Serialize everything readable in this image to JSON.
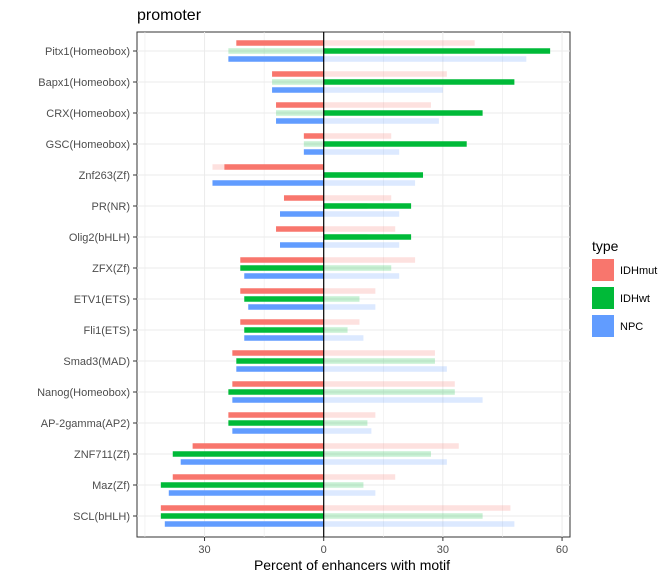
{
  "chart_data": {
    "type": "bar",
    "orientation": "horizontal",
    "title": "promoter",
    "xlabel": "Percent of enhancers with motif",
    "ylabel": "",
    "xlim": [
      -47,
      62
    ],
    "xticks": [
      -30,
      0,
      30,
      60
    ],
    "xtick_labels": [
      "30",
      "0",
      "30",
      "60"
    ],
    "grid": true,
    "legend": {
      "title": "type",
      "position": "right"
    },
    "categories": [
      "Pitx1(Homeobox)",
      "Bapx1(Homeobox)",
      "CRX(Homeobox)",
      "GSC(Homeobox)",
      "Znf263(Zf)",
      "PR(NR)",
      "Olig2(bHLH)",
      "ZFX(Zf)",
      "ETV1(ETS)",
      "Fli1(ETS)",
      "Smad3(MAD)",
      "Nanog(Homeobox)",
      "AP-2gamma(AP2)",
      "ZNF711(Zf)",
      "Maz(Zf)",
      "SCL(bHLH)"
    ],
    "series": [
      {
        "name": "IDHmut",
        "color": "#f8766d",
        "values": [
          -22,
          -13,
          -12,
          -5,
          -25,
          -10,
          -12,
          -21,
          -21,
          -21,
          -23,
          -23,
          -24,
          -33,
          -38,
          -41
        ]
      },
      {
        "name": "IDHwt",
        "color": "#00ba38",
        "values": [
          57,
          48,
          40,
          36,
          25,
          22,
          22,
          -21,
          -20,
          -20,
          -22,
          -24,
          -24,
          -38,
          -41,
          -41
        ]
      },
      {
        "name": "NPC",
        "color": "#619cff",
        "values": [
          -24,
          -13,
          -12,
          -5,
          -28,
          -11,
          -11,
          -20,
          -19,
          -20,
          -22,
          -23,
          -23,
          -36,
          -39,
          -40
        ]
      }
    ],
    "background_series": [
      {
        "name": "IDHmut",
        "color": "#f8766d",
        "values": [
          38,
          31,
          27,
          17,
          -28,
          17,
          18,
          23,
          13,
          9,
          28,
          33,
          13,
          34,
          18,
          47
        ]
      },
      {
        "name": "IDHwt",
        "color": "#00ba38",
        "values": [
          -24,
          -13,
          -12,
          -5,
          19,
          11,
          11,
          17,
          9,
          6,
          28,
          33,
          11,
          27,
          10,
          40
        ]
      },
      {
        "name": "NPC",
        "color": "#619cff",
        "values": [
          51,
          30,
          29,
          19,
          23,
          19,
          19,
          19,
          13,
          10,
          31,
          40,
          12,
          31,
          13,
          48
        ]
      }
    ]
  }
}
